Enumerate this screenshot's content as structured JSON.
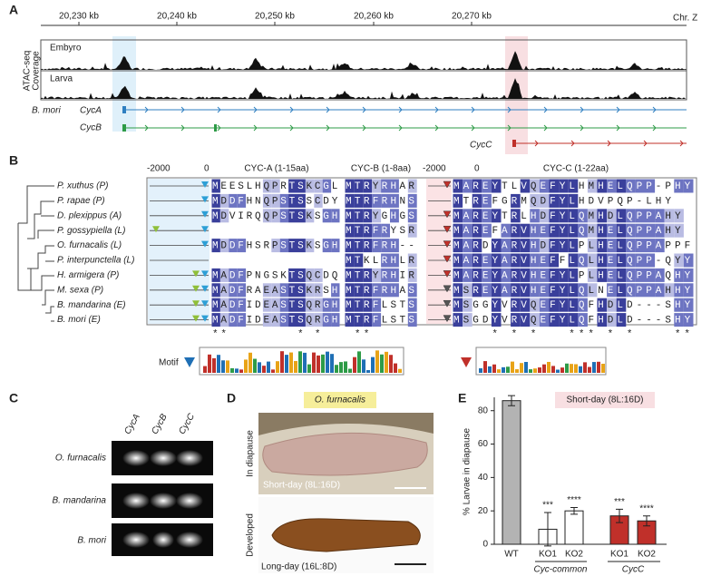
{
  "panel_a": {
    "label": "A",
    "ticks": [
      "20,230 kb",
      "20,240 kb",
      "20,250 kb",
      "20,260 kb",
      "20,270 kb"
    ],
    "chromosome": "Chr. Z",
    "track_title": [
      "ATAC-seq",
      "Coverage"
    ],
    "tracks": [
      "Embyro",
      "Larva"
    ],
    "species": "B. mori",
    "genes": [
      "CycA",
      "CycB",
      "CycC"
    ]
  },
  "panel_b": {
    "label": "B",
    "headers": [
      "-2000",
      "0",
      "CYC-A (1-15aa)",
      "CYC-B (1-8aa)",
      "-2000",
      "0",
      "CYC-C (1-22aa)"
    ],
    "rows": [
      {
        "species": "P. xuthus (P)",
        "cyc_a": "MEESLHQPRTSKCGL",
        "cyc_b": "MTRYRHAR",
        "cyc_c": "MAREYTLVQEFYLHMHELQPP-PHY"
      },
      {
        "species": "P. rapae (P)",
        "cyc_a": "MDDFHNQPSTSSCDY",
        "cyc_b": "MTRFRHNS",
        "cyc_c": "MTREFGRMQDFYLHDVPQP-LHY"
      },
      {
        "species": "D. plexippus (A)",
        "cyc_a": "MDVIRQQPSTSKSGH",
        "cyc_b": "MTRYGHGS",
        "cyc_c": "MAREYTRLHDFYLQMHDLQPPAHY"
      },
      {
        "species": "P. gossypiella (L)",
        "cyc_a": null,
        "cyc_b": "MTRFRYSR",
        "cyc_c": "MAREFARVHEFYLQMHELQPPAHY"
      },
      {
        "species": "O. furnacalis (L)",
        "cyc_a": "MDDFHSRPSTSKSGH",
        "cyc_b": "MTRFRH--",
        "cyc_c": "MARDYARVHDFYLPLHELQPPAPPF"
      },
      {
        "species": "P. interpunctella (L)",
        "cyc_a": null,
        "cyc_b": "MTKLRHLR",
        "cyc_c": "MAREYARVHEFFLQLHELQPP-QYY"
      },
      {
        "species": "H. armigera (P)",
        "cyc_a": "MADFPNGSKTSQCDQ",
        "cyc_b": "MTRYRHIR",
        "cyc_c": "MAREYARVHEFYLPLHELQPPAQHY"
      },
      {
        "species": "M. sexa (P)",
        "cyc_a": "MADFRAEASTSKRSH",
        "cyc_b": "MTRFRHAS",
        "cyc_c": "MSREYARVHEFYLQLNELQPPAHHY"
      },
      {
        "species": "B. mandarina (E)",
        "cyc_a": "MADFIDEASTSQRGH",
        "cyc_b": "MTRFLSTS",
        "cyc_c": "MSGGYVRVQEFYLQFHDLD---SHY"
      },
      {
        "species": "B. mori (E)",
        "cyc_a": "MADFIDEASTSQRGH",
        "cyc_b": "MTRFLSTS",
        "cyc_c": "MSGDYVRVQEFYLQFHDLD---SHY"
      }
    ],
    "conservation": {
      "cyc_a": "**        * *",
      "cyc_b": " **",
      "cyc_c": "    * * *   *** * *    **"
    },
    "motif": "Motif"
  },
  "panel_c": {
    "label": "C",
    "genes": [
      "CycA",
      "CycB",
      "CycC"
    ],
    "species": [
      "O. furnacalis",
      "B. mandarina",
      "B. mori"
    ]
  },
  "panel_d": {
    "label": "D",
    "species": "O. furnacalis",
    "rows": [
      "In diapause",
      "Developed"
    ],
    "conditions": [
      "Short-day (8L:16D)",
      "Long-day (16L:8D)"
    ]
  },
  "chart_data": {
    "type": "bar",
    "label": "E",
    "title": "Short-day (8L:16D)",
    "y_label": "% Larvae in diapause",
    "categories": [
      "WT",
      "KO1",
      "KO2",
      "KO1",
      "KO2"
    ],
    "values": [
      86,
      9,
      20,
      17,
      14
    ],
    "errors": [
      3,
      10,
      2,
      4,
      3
    ],
    "colors": [
      "#b3b3b3",
      "#ffffff",
      "#ffffff",
      "#c0302a",
      "#c0302a"
    ],
    "significance": [
      null,
      "***",
      "****",
      "***",
      "****"
    ],
    "groups": [
      "Cyc-common",
      "CycC"
    ],
    "ylim": [
      0,
      88
    ],
    "yticks": [
      0,
      20,
      40,
      60,
      80
    ]
  }
}
